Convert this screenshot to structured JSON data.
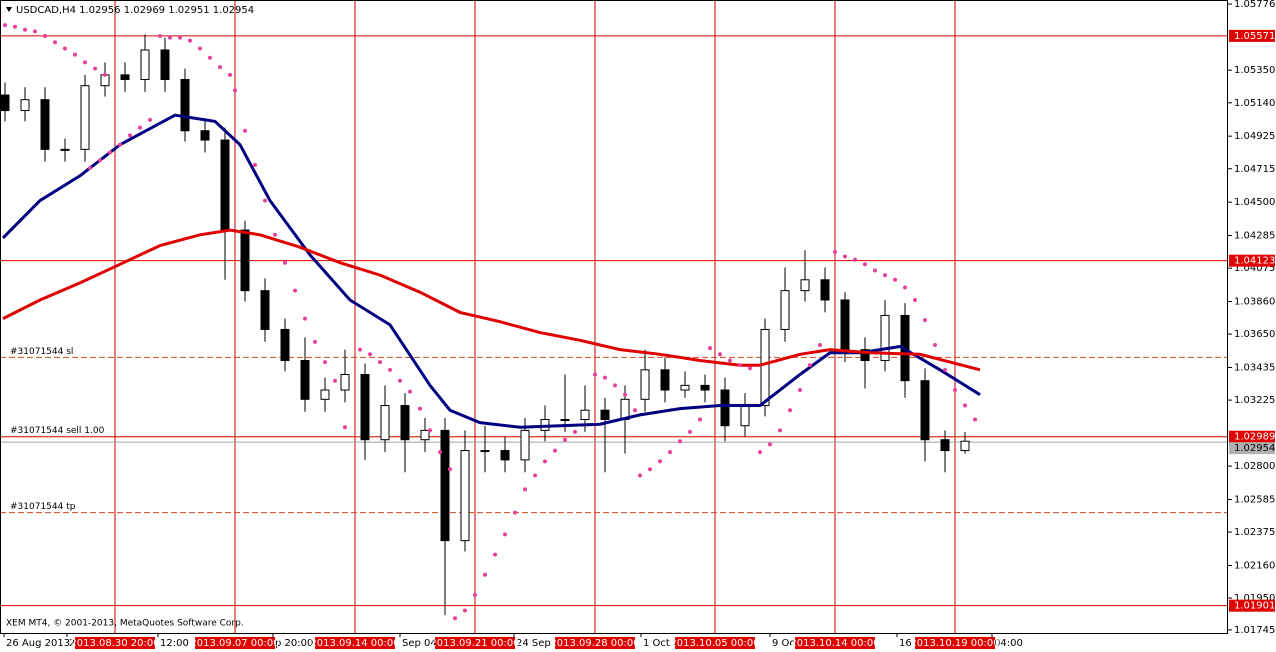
{
  "chart_data": {
    "type": "candlestick",
    "title": "USDCAD,H4",
    "ohlc_header": [
      1.02956,
      1.02969,
      1.02951,
      1.02954
    ],
    "copyright": "XEM MT4, © 2001-2013, MetaQuotes Software Corp.",
    "xlim": [
      0,
      245.6
    ],
    "ylim": [
      1.01725,
      1.05802
    ],
    "yticks": [
      1.05776,
      {
        "value": 1.0535,
        "label": "1.05350"
      },
      {
        "value": 1.0514,
        "label": "1.05140"
      },
      1.04925,
      1.04715,
      {
        "value": 1.045,
        "label": "1.04500"
      },
      1.04285,
      1.04075,
      {
        "value": 1.0386,
        "label": "1.03860"
      },
      {
        "value": 1.0365,
        "label": "1.03650"
      },
      1.03435,
      1.03225,
      {
        "value": 1.028,
        "label": "1.02800"
      },
      1.02585,
      1.02375,
      {
        "value": 1.0216,
        "label": "1.02160"
      },
      {
        "value": 1.0195,
        "label": "1.01950"
      },
      1.01745
    ],
    "xticks": [
      {
        "value": 0.8,
        "label": "26 Aug 2013"
      },
      {
        "value": 13.4,
        "label": "28"
      },
      {
        "value": 31.6,
        "label": "12:00"
      },
      {
        "value": 54.6,
        "label": "p 20:00"
      },
      {
        "value": 80,
        "label": "Sep 04:0"
      },
      {
        "value": 102.8,
        "label": "24 Sep 12"
      },
      {
        "value": 128.2,
        "label": "1 Oct 2"
      },
      {
        "value": 154,
        "label": "9 Oct"
      },
      {
        "value": 179.4,
        "label": "16 O"
      },
      {
        "value": 198.4,
        "label": "04:00"
      }
    ],
    "vlines": [
      {
        "value": 23,
        "label": "2013.08.30 20:00"
      },
      {
        "value": 47,
        "label": "2013.09.07 00:00"
      },
      {
        "value": 71,
        "label": "2013.09.14 00:00"
      },
      {
        "value": 95,
        "label": "2013.09.21 00:00"
      },
      {
        "value": 119,
        "label": "2013.09.28 00:00"
      },
      {
        "value": 143,
        "label": "2013.10.05 00:00"
      },
      {
        "value": 167,
        "label": "2013.10.14 00:00"
      },
      {
        "value": 191,
        "label": "2013.10.19 00:00"
      }
    ],
    "levels": {
      "color": "#e00000",
      "values": [
        1.05571,
        1.04123,
        1.02989,
        1.01901
      ]
    },
    "bid": 1.02954,
    "orders": [
      {
        "label": "#31071544 sl",
        "value": 1.035
      },
      {
        "label": "#31071544 sell 1.00",
        "value": 1.0299
      },
      {
        "label": "#31071544 tp",
        "value": 1.025
      }
    ],
    "candles": {
      "x": [
        1,
        5,
        9,
        13,
        17,
        21,
        25,
        29,
        33,
        37,
        41,
        45,
        49,
        53,
        57,
        61,
        65,
        69,
        73,
        77,
        81,
        85,
        89,
        93,
        97,
        101,
        105,
        109,
        113,
        117,
        121,
        125,
        129,
        133,
        137,
        141,
        145,
        149,
        153,
        157,
        161,
        165,
        169,
        173,
        177,
        181,
        185,
        189,
        193
      ],
      "open": [
        1.0519,
        1.0509,
        1.0516,
        1.0484,
        1.0484,
        1.0525,
        1.0532,
        1.0529,
        1.0548,
        1.0529,
        1.0496,
        1.049,
        1.0432,
        1.0393,
        1.0368,
        1.0348,
        1.0323,
        1.0329,
        1.0339,
        1.0297,
        1.0319,
        1.0297,
        1.0303,
        1.0232,
        1.029,
        1.029,
        1.0284,
        1.0303,
        1.031,
        1.031,
        1.0316,
        1.031,
        1.0323,
        1.0342,
        1.0329,
        1.0332,
        1.0329,
        1.0306,
        1.0319,
        1.0368,
        1.0393,
        1.04,
        1.0387,
        1.0355,
        1.0348,
        1.0377,
        1.0335,
        1.0297,
        1.029
      ],
      "high": [
        1.0527,
        1.0524,
        1.0524,
        1.0491,
        1.0532,
        1.054,
        1.054,
        1.0558,
        1.0556,
        1.0536,
        1.0504,
        1.0498,
        1.0438,
        1.0401,
        1.0375,
        1.0363,
        1.0337,
        1.0355,
        1.0346,
        1.0332,
        1.0327,
        1.0311,
        1.0311,
        1.0303,
        1.0306,
        1.0299,
        1.0311,
        1.0319,
        1.0339,
        1.0332,
        1.0324,
        1.0332,
        1.0355,
        1.035,
        1.0341,
        1.0339,
        1.0337,
        1.0327,
        1.0375,
        1.0408,
        1.0419,
        1.0408,
        1.0392,
        1.0363,
        1.0387,
        1.0385,
        1.0343,
        1.0303,
        1.0302
      ],
      "low": [
        1.0502,
        1.0502,
        1.0476,
        1.0476,
        1.0476,
        1.0518,
        1.0521,
        1.0521,
        1.0521,
        1.0489,
        1.0482,
        1.04,
        1.0386,
        1.036,
        1.0341,
        1.0315,
        1.0315,
        1.0321,
        1.0284,
        1.0289,
        1.0276,
        1.0289,
        1.0184,
        1.0225,
        1.0276,
        1.0276,
        1.0276,
        1.0296,
        1.0302,
        1.0302,
        1.0276,
        1.0288,
        1.0315,
        1.0321,
        1.0324,
        1.0321,
        1.0296,
        1.0299,
        1.0312,
        1.036,
        1.0386,
        1.0379,
        1.0347,
        1.033,
        1.0341,
        1.0324,
        1.0283,
        1.0276,
        1.0288
      ],
      "close": [
        1.0509,
        1.0516,
        1.0484,
        1.0484,
        1.0525,
        1.0532,
        1.0529,
        1.0548,
        1.0529,
        1.0496,
        1.049,
        1.0432,
        1.0393,
        1.0368,
        1.0348,
        1.0323,
        1.0329,
        1.0339,
        1.0297,
        1.0319,
        1.0297,
        1.0303,
        1.0232,
        1.029,
        1.029,
        1.0284,
        1.0303,
        1.031,
        1.031,
        1.0316,
        1.031,
        1.0323,
        1.0342,
        1.0329,
        1.0332,
        1.0329,
        1.0306,
        1.0319,
        1.0368,
        1.0393,
        1.04,
        1.0387,
        1.0355,
        1.0348,
        1.0377,
        1.0335,
        1.0297,
        1.029,
        1.0296
      ]
    },
    "series": [
      {
        "color": "#000080",
        "x": [
          0.6,
          8,
          16,
          24,
          35,
          43,
          48,
          54,
          62,
          70,
          78,
          86,
          90,
          96,
          104,
          112,
          120,
          128,
          136,
          144,
          152,
          160,
          166,
          172,
          180,
          188,
          196
        ],
        "values": [
          1.0427,
          1.0451,
          1.0467,
          1.0487,
          1.0506,
          1.0502,
          1.0487,
          1.0451,
          1.0416,
          1.0387,
          1.0371,
          1.0332,
          1.0316,
          1.0308,
          1.0305,
          1.0306,
          1.0307,
          1.0313,
          1.0317,
          1.0319,
          1.0319,
          1.0339,
          1.0353,
          1.0353,
          1.0357,
          1.0342,
          1.0326
        ]
      },
      {
        "color": "#e00000",
        "x": [
          0.6,
          8,
          16,
          24,
          32,
          40,
          46,
          52,
          60,
          68,
          76,
          84,
          92,
          100,
          108,
          116,
          124,
          132,
          140,
          148,
          152,
          160,
          166,
          174,
          184,
          190,
          196
        ],
        "values": [
          1.0375,
          1.0387,
          1.0398,
          1.041,
          1.0422,
          1.0429,
          1.0432,
          1.0429,
          1.0421,
          1.0411,
          1.0403,
          1.0392,
          1.0379,
          1.0373,
          1.0366,
          1.0361,
          1.0355,
          1.0352,
          1.0348,
          1.0345,
          1.0345,
          1.0352,
          1.0355,
          1.0353,
          1.0352,
          1.0347,
          1.0342
        ]
      }
    ],
    "sar": {
      "color": "#e8409b",
      "x": [
        1,
        3,
        5,
        7,
        9,
        11,
        13,
        15,
        17,
        19,
        21,
        18,
        20,
        22,
        24,
        26,
        28,
        30,
        32,
        34,
        36,
        38,
        40,
        42,
        44,
        46,
        47,
        49,
        51,
        53,
        55,
        57,
        59,
        61,
        63,
        65,
        67,
        69,
        72,
        74,
        76,
        78,
        80,
        82,
        84,
        86,
        88,
        90,
        91,
        93,
        95,
        97,
        99,
        101,
        103,
        105,
        107,
        109,
        111,
        113,
        115,
        119,
        121,
        123,
        125,
        127,
        128,
        130,
        132,
        134,
        136,
        138,
        140,
        142,
        144,
        146,
        148,
        150,
        152,
        154,
        156,
        158,
        160,
        162,
        164,
        167,
        169,
        171,
        173,
        175,
        177,
        179,
        181,
        183,
        185,
        187,
        189,
        191,
        193,
        195
      ],
      "values": [
        1.0564,
        1.0563,
        1.0561,
        1.056,
        1.0557,
        1.0553,
        1.0549,
        1.0545,
        1.054,
        1.0536,
        1.0532,
        1.0472,
        1.0477,
        1.0482,
        1.0487,
        1.0493,
        1.0498,
        1.0503,
        1.0557,
        1.0556,
        1.0556,
        1.0554,
        1.0549,
        1.0543,
        1.0537,
        1.0532,
        1.0522,
        1.0496,
        1.0474,
        1.0451,
        1.0429,
        1.0411,
        1.0393,
        1.0375,
        1.036,
        1.0347,
        1.0335,
        1.0305,
        1.0355,
        1.0352,
        1.0347,
        1.0342,
        1.0335,
        1.0328,
        1.0317,
        1.0303,
        1.0289,
        1.0278,
        1.0182,
        1.0187,
        1.0197,
        1.021,
        1.0223,
        1.0236,
        1.025,
        1.0265,
        1.0274,
        1.0283,
        1.029,
        1.0297,
        1.0302,
        1.0339,
        1.0337,
        1.0332,
        1.0326,
        1.0316,
        1.0274,
        1.0278,
        1.0283,
        1.0289,
        1.0296,
        1.0302,
        1.031,
        1.0356,
        1.0352,
        1.0348,
        1.0345,
        1.0343,
        1.0289,
        1.0294,
        1.0303,
        1.0316,
        1.0329,
        1.0345,
        1.0358,
        1.0418,
        1.0415,
        1.0413,
        1.041,
        1.0406,
        1.0403,
        1.04,
        1.0395,
        1.0387,
        1.0374,
        1.0358,
        1.0342,
        1.0329,
        1.0319,
        1.031
      ]
    }
  }
}
